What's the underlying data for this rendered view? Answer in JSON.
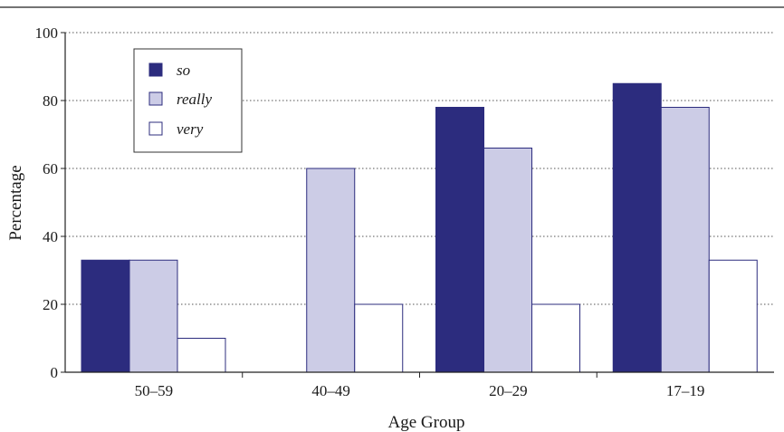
{
  "chart_data": {
    "type": "bar",
    "title": "",
    "xlabel": "Age Group",
    "ylabel": "Percentage",
    "ylim": [
      0,
      100
    ],
    "yticks": [
      0,
      20,
      40,
      60,
      80,
      100
    ],
    "grid": "horizontal dotted",
    "legend_position": "top-left",
    "categories": [
      "50–59",
      "40–49",
      "20–29",
      "17–19"
    ],
    "series": [
      {
        "name": "so",
        "values": [
          33,
          0,
          78,
          85
        ],
        "color": "#2c2c7e"
      },
      {
        "name": "really",
        "values": [
          33,
          60,
          66,
          78
        ],
        "color": "#cccce6"
      },
      {
        "name": "very",
        "values": [
          10,
          20,
          20,
          33
        ],
        "color": "#ffffff"
      }
    ],
    "bar_edge_color": "#2c2c7e"
  }
}
